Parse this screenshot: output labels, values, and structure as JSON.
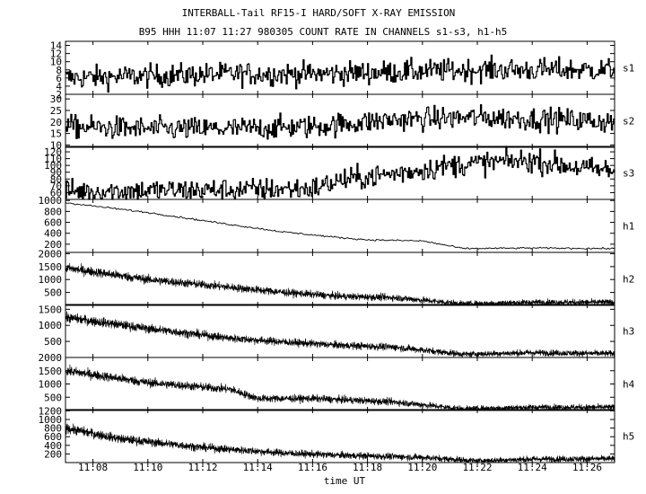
{
  "chart_data": {
    "type": "line",
    "title": "INTERBALL-Tail RF15-I HARD/SOFT X-RAY EMISSION",
    "subtitle": "B95 HHH 11:07 11:27 980305  COUNT RATE IN CHANNELS s1-s3, h1-h5",
    "xlabel": "time UT",
    "xlim": [
      "11:07",
      "11:27"
    ],
    "x_ticks": [
      "11:08",
      "11:10",
      "11:12",
      "11:14",
      "11:16",
      "11:18",
      "11:20",
      "11:22",
      "11:24",
      "11:26"
    ],
    "grid": false,
    "series": [
      {
        "name": "s1",
        "ylim": [
          2,
          15
        ],
        "y_ticks": [
          2,
          4,
          6,
          8,
          10,
          12,
          14
        ],
        "x": [
          "11:07",
          "11:10",
          "11:13",
          "11:16",
          "11:19",
          "11:22",
          "11:25",
          "11:27"
        ],
        "values": [
          6,
          6.5,
          7,
          7,
          7.5,
          8,
          8,
          8
        ]
      },
      {
        "name": "s2",
        "ylim": [
          9,
          32
        ],
        "y_ticks": [
          10,
          15,
          20,
          25,
          30
        ],
        "x": [
          "11:07",
          "11:10",
          "11:13",
          "11:16",
          "11:19",
          "11:22",
          "11:25",
          "11:27"
        ],
        "values": [
          18,
          17,
          17,
          18,
          21,
          22,
          21,
          20
        ]
      },
      {
        "name": "s3",
        "ylim": [
          50,
          128
        ],
        "y_ticks": [
          60,
          70,
          80,
          90,
          100,
          110,
          120
        ],
        "x": [
          "11:07",
          "11:10",
          "11:13",
          "11:16",
          "11:17",
          "11:19",
          "11:21",
          "11:23",
          "11:24",
          "11:26",
          "11:27"
        ],
        "values": [
          62,
          63,
          64,
          66,
          78,
          88,
          100,
          106,
          107,
          95,
          92
        ]
      },
      {
        "name": "h1",
        "ylim": [
          50,
          1020
        ],
        "y_ticks": [
          200,
          400,
          600,
          800,
          1000
        ],
        "x": [
          "11:07",
          "11:10",
          "11:13",
          "11:15",
          "11:17",
          "11:18",
          "11:20",
          "11:21.5",
          "11:24",
          "11:27"
        ],
        "values": [
          960,
          780,
          560,
          420,
          320,
          280,
          260,
          120,
          130,
          120
        ]
      },
      {
        "name": "h2",
        "ylim": [
          0,
          2050
        ],
        "y_ticks": [
          500,
          1000,
          1500,
          2000
        ],
        "x": [
          "11:07",
          "11:10",
          "11:13",
          "11:15",
          "11:17",
          "11:19",
          "11:21.5",
          "11:24",
          "11:27"
        ],
        "values": [
          1450,
          1000,
          700,
          500,
          350,
          300,
          60,
          120,
          120
        ]
      },
      {
        "name": "h3",
        "ylim": [
          0,
          1650
        ],
        "y_ticks": [
          500,
          1000,
          1500
        ],
        "x": [
          "11:07",
          "11:10",
          "11:13",
          "11:15",
          "11:17",
          "11:19",
          "11:21.5",
          "11:24",
          "11:27"
        ],
        "values": [
          1250,
          900,
          600,
          480,
          380,
          320,
          100,
          150,
          120
        ]
      },
      {
        "name": "h4",
        "ylim": [
          0,
          2000
        ],
        "y_ticks": [
          500,
          1000,
          1500,
          2000
        ],
        "x": [
          "11:07",
          "11:10",
          "11:13",
          "11:14",
          "11:16",
          "11:19",
          "11:21.5",
          "11:24",
          "11:27"
        ],
        "values": [
          1500,
          1050,
          800,
          450,
          450,
          320,
          60,
          120,
          120
        ]
      },
      {
        "name": "h5",
        "ylim": [
          0,
          1230
        ],
        "y_ticks": [
          200,
          400,
          600,
          800,
          1000,
          1200
        ],
        "x": [
          "11:07",
          "11:09",
          "11:12",
          "11:15",
          "11:17",
          "11:20",
          "11:22",
          "11:24",
          "11:27"
        ],
        "values": [
          800,
          550,
          350,
          220,
          170,
          120,
          40,
          80,
          90
        ]
      }
    ]
  }
}
